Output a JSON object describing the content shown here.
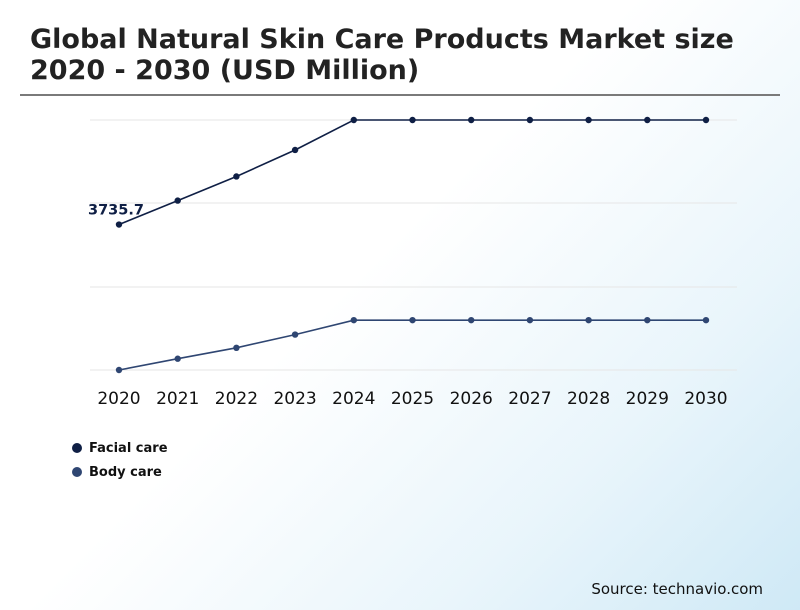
{
  "title": "Global Natural Skin Care Products Market size 2020 - 2030 (USD Million)",
  "source": "Source: technavio.com",
  "colors": {
    "facial_care": "#0f1f45",
    "body_care": "#2f4672",
    "grid": "#e6e6e6",
    "title_rule": "#7a7a7a"
  },
  "chart_data": {
    "type": "line",
    "title": "Global Natural Skin Care Products Market size 2020 - 2030 (USD Million)",
    "categories": [
      "2020",
      "2021",
      "2022",
      "2023",
      "2024",
      "2025",
      "2026",
      "2027",
      "2028",
      "2029",
      "2030"
    ],
    "y_axis_labels_shown": false,
    "grid": true,
    "legend_position": "bottom-left",
    "series": [
      {
        "name": "Facial care",
        "color": "#0f1f45",
        "values": [
          3735.7,
          4350,
          4970,
          5650,
          6420,
          6420,
          6420,
          6420,
          6420,
          6420,
          6420
        ]
      },
      {
        "name": "Body care",
        "color": "#2f4672",
        "values": [
          0,
          290,
          570,
          910,
          1280,
          1280,
          1280,
          1280,
          1280,
          1280,
          1280
        ]
      }
    ],
    "annotations": [
      {
        "series": "Facial care",
        "category": "2020",
        "text": "3735.7"
      }
    ]
  }
}
